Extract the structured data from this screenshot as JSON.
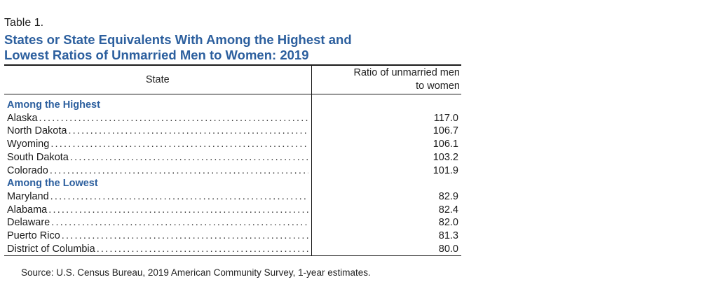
{
  "table_label": "Table 1.",
  "title_line1": "States or State Equivalents With Among the Highest and",
  "title_line2": "Lowest Ratios of Unmarried Men to Women: 2019",
  "headers": {
    "state": "State",
    "ratio_line1": "Ratio of unmarried men",
    "ratio_line2": "to women"
  },
  "groups": [
    {
      "label": "Among the Highest",
      "rows": [
        {
          "state": "Alaska",
          "ratio": "117.0"
        },
        {
          "state": "North Dakota",
          "ratio": "106.7"
        },
        {
          "state": "Wyoming",
          "ratio": "106.1"
        },
        {
          "state": "South Dakota",
          "ratio": "103.2"
        },
        {
          "state": "Colorado",
          "ratio": "101.9"
        }
      ]
    },
    {
      "label": "Among the Lowest",
      "rows": [
        {
          "state": "Maryland",
          "ratio": "82.9"
        },
        {
          "state": "Alabama",
          "ratio": "82.4"
        },
        {
          "state": "Delaware",
          "ratio": "82.0"
        },
        {
          "state": "Puerto Rico",
          "ratio": "81.3"
        },
        {
          "state": "District of Columbia",
          "ratio": "80.0"
        }
      ]
    }
  ],
  "source": "Source: U.S. Census Bureau, 2019 American Community Survey, 1-year estimates."
}
